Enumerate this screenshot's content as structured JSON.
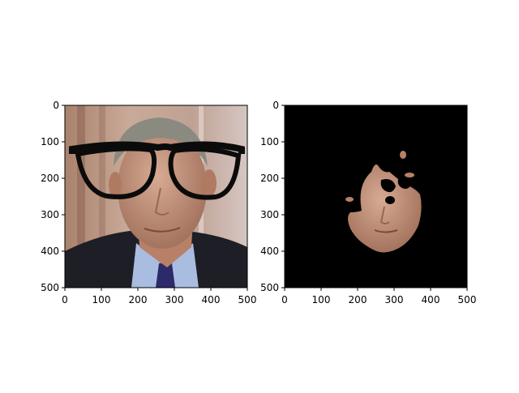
{
  "figure": {
    "background": "#ffffff"
  },
  "chart_data": [
    {
      "type": "image",
      "content": "portrait photo of an older man in suit and tie with black eyeglasses overlay",
      "xlim": [
        0,
        500
      ],
      "ylim": [
        500,
        0
      ],
      "x_ticks": [
        0,
        100,
        200,
        300,
        400,
        500
      ],
      "y_ticks": [
        0,
        100,
        200,
        300,
        400,
        500
      ],
      "tick_labels": {
        "x": [
          "0",
          "100",
          "200",
          "300",
          "400",
          "500"
        ],
        "y": [
          "0",
          "100",
          "200",
          "300",
          "400",
          "500"
        ]
      },
      "grid": false
    },
    {
      "type": "image",
      "content": "segmented face region on a black background; eye and forehead areas masked out",
      "xlim": [
        0,
        500
      ],
      "ylim": [
        500,
        0
      ],
      "x_ticks": [
        0,
        100,
        200,
        300,
        400,
        500
      ],
      "y_ticks": [
        0,
        100,
        200,
        300,
        400,
        500
      ],
      "tick_labels": {
        "x": [
          "0",
          "100",
          "200",
          "300",
          "400",
          "500"
        ],
        "y": [
          "0",
          "100",
          "200",
          "300",
          "400",
          "500"
        ]
      },
      "grid": false
    }
  ],
  "colors": {
    "mask_background": "#000000",
    "skin": "#c89a82",
    "suit": "#1e1e26",
    "shirt": "#a9bde0",
    "hair": "#8a8a80",
    "wall": "#b8988a",
    "glasses": "#0b0b0b"
  }
}
